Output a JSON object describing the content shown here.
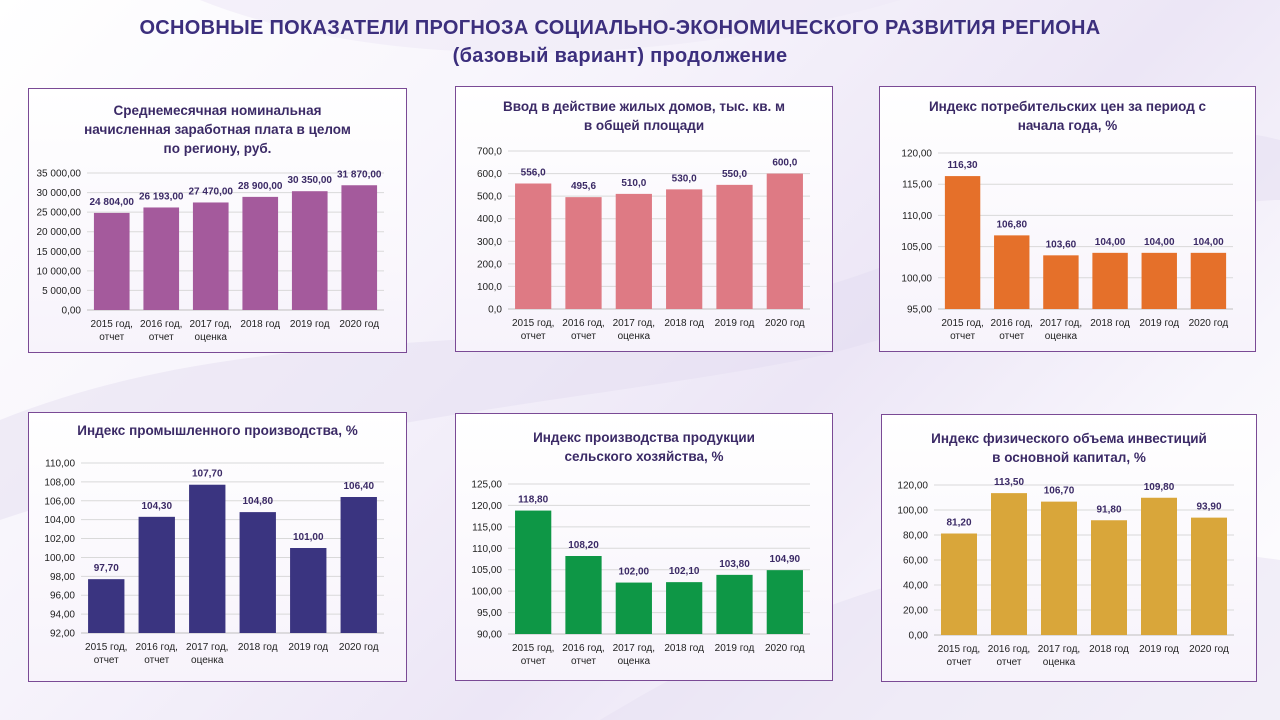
{
  "title_line1": "ОСНОВНЫЕ  ПОКАЗАТЕЛИ ПРОГНОЗА  СОЦИАЛЬНО-ЭКОНОМИЧЕСКОГО  РАЗВИТИЯ  РЕГИОНА",
  "title_line2": "(базовый вариант)  продолжение",
  "chart_data": [
    {
      "type": "bar",
      "title_lines": [
        "Среднемесячная номинальная",
        "начисленная заработная плата в целом",
        "по региону, руб."
      ],
      "categories": [
        [
          "2015 год,",
          "отчет"
        ],
        [
          "2016 год,",
          "отчет"
        ],
        [
          "2017 год,",
          "оценка"
        ],
        [
          "2018 год"
        ],
        [
          "2019 год"
        ],
        [
          "2020 год"
        ]
      ],
      "values": [
        24804,
        26193,
        27470,
        28900,
        30350,
        31870
      ],
      "value_labels": [
        "24 804,00",
        "26 193,00",
        "27 470,00",
        "28 900,00",
        "30 350,00",
        "31 870,00"
      ],
      "yticks": [
        0,
        5000,
        10000,
        15000,
        20000,
        25000,
        30000,
        35000
      ],
      "ytick_labels": [
        "0,00",
        "5 000,00",
        "10 000,00",
        "15 000,00",
        "20 000,00",
        "25 000,00",
        "30 000,00",
        "35 000,00"
      ],
      "ylim": [
        0,
        35000
      ],
      "grid": true,
      "color": "#a45a9c"
    },
    {
      "type": "bar",
      "title_lines": [
        "Ввод в действие жилых домов, тыс. кв. м",
        "в общей площади"
      ],
      "categories": [
        [
          "2015 год,",
          "отчет"
        ],
        [
          "2016 год,",
          "отчет"
        ],
        [
          "2017 год,",
          "оценка"
        ],
        [
          "2018 год"
        ],
        [
          "2019 год"
        ],
        [
          "2020 год"
        ]
      ],
      "values": [
        556.0,
        495.6,
        510.0,
        530.0,
        550.0,
        600.0
      ],
      "value_labels": [
        "556,0",
        "495,6",
        "510,0",
        "530,0",
        "550,0",
        "600,0"
      ],
      "yticks": [
        0,
        100,
        200,
        300,
        400,
        500,
        600,
        700
      ],
      "ytick_labels": [
        "0,0",
        "100,0",
        "200,0",
        "300,0",
        "400,0",
        "500,0",
        "600,0",
        "700,0"
      ],
      "ylim": [
        0,
        700
      ],
      "grid": true,
      "color": "#de7a84"
    },
    {
      "type": "bar",
      "title_lines": [
        "Индекс потребительских цен за период с",
        "начала года,  %"
      ],
      "categories": [
        [
          "2015 год,",
          "отчет"
        ],
        [
          "2016 год,",
          "отчет"
        ],
        [
          "2017 год,",
          "оценка"
        ],
        [
          "2018 год"
        ],
        [
          "2019 год"
        ],
        [
          "2020 год"
        ]
      ],
      "values": [
        116.3,
        106.8,
        103.6,
        104.0,
        104.0,
        104.0
      ],
      "value_labels": [
        "116,30",
        "106,80",
        "103,60",
        "104,00",
        "104,00",
        "104,00"
      ],
      "yticks": [
        95,
        100,
        105,
        110,
        115,
        120
      ],
      "ytick_labels": [
        "95,00",
        "100,00",
        "105,00",
        "110,00",
        "115,00",
        "120,00"
      ],
      "ylim": [
        95,
        120
      ],
      "grid": true,
      "color": "#e5702a"
    },
    {
      "type": "bar",
      "title_lines": [
        "Индекс промышленного производства, %"
      ],
      "categories": [
        [
          "2015 год,",
          "отчет"
        ],
        [
          "2016 год,",
          "отчет"
        ],
        [
          "2017 год,",
          "оценка"
        ],
        [
          "2018 год"
        ],
        [
          "2019 год"
        ],
        [
          "2020 год"
        ]
      ],
      "values": [
        97.7,
        104.3,
        107.7,
        104.8,
        101.0,
        106.4
      ],
      "value_labels": [
        "97,70",
        "104,30",
        "107,70",
        "104,80",
        "101,00",
        "106,40"
      ],
      "yticks": [
        92,
        94,
        96,
        98,
        100,
        102,
        104,
        106,
        108,
        110
      ],
      "ytick_labels": [
        "92,00",
        "94,00",
        "96,00",
        "98,00",
        "100,00",
        "102,00",
        "104,00",
        "106,00",
        "108,00",
        "110,00"
      ],
      "ylim": [
        92,
        110
      ],
      "grid": true,
      "color": "#3a3480"
    },
    {
      "type": "bar",
      "title_lines": [
        "Индекс производства продукции",
        "сельского хозяйства, %"
      ],
      "categories": [
        [
          "2015 год,",
          "отчет"
        ],
        [
          "2016 год,",
          "отчет"
        ],
        [
          "2017 год,",
          "оценка"
        ],
        [
          "2018 год"
        ],
        [
          "2019 год"
        ],
        [
          "2020 год"
        ]
      ],
      "values": [
        118.8,
        108.2,
        102.0,
        102.1,
        103.8,
        104.9
      ],
      "value_labels": [
        "118,80",
        "108,20",
        "102,00",
        "102,10",
        "103,80",
        "104,90"
      ],
      "yticks": [
        90,
        95,
        100,
        105,
        110,
        115,
        120,
        125
      ],
      "ytick_labels": [
        "90,00",
        "95,00",
        "100,00",
        "105,00",
        "110,00",
        "115,00",
        "120,00",
        "125,00"
      ],
      "ylim": [
        90,
        125
      ],
      "grid": true,
      "color": "#0e9746"
    },
    {
      "type": "bar",
      "title_lines": [
        "Индекс физического объема инвестиций",
        "в основной капитал, %"
      ],
      "categories": [
        [
          "2015 год,",
          "отчет"
        ],
        [
          "2016 год,",
          "отчет"
        ],
        [
          "2017 год,",
          "оценка"
        ],
        [
          "2018 год"
        ],
        [
          "2019 год"
        ],
        [
          "2020 год"
        ]
      ],
      "values": [
        81.2,
        113.5,
        106.7,
        91.8,
        109.8,
        93.9
      ],
      "value_labels": [
        "81,20",
        "113,50",
        "106,70",
        "91,80",
        "109,80",
        "93,90"
      ],
      "yticks": [
        0,
        20,
        40,
        60,
        80,
        100,
        120
      ],
      "ytick_labels": [
        "0,00",
        "20,00",
        "40,00",
        "60,00",
        "80,00",
        "100,00",
        "120,00"
      ],
      "ylim": [
        0,
        120
      ],
      "grid": true,
      "color": "#d9a63a"
    }
  ]
}
